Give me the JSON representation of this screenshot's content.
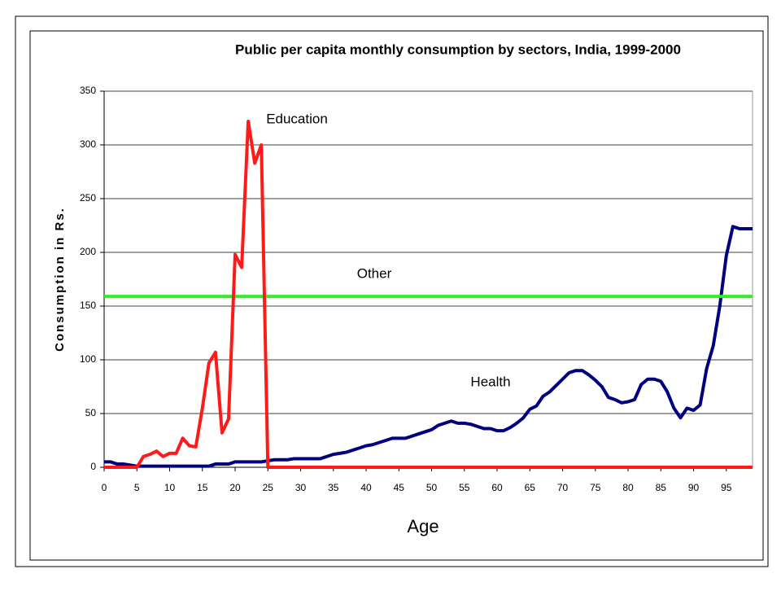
{
  "chart_data": {
    "type": "line",
    "title": "Public per capita monthly consumption by sectors, India, 1999-2000",
    "x_label": "Age",
    "y_label": "Consumption in Rs.",
    "x": [
      0,
      1,
      2,
      3,
      4,
      5,
      6,
      7,
      8,
      9,
      10,
      11,
      12,
      13,
      14,
      15,
      16,
      17,
      18,
      19,
      20,
      21,
      22,
      23,
      24,
      25,
      26,
      27,
      28,
      29,
      30,
      31,
      32,
      33,
      34,
      35,
      36,
      37,
      38,
      39,
      40,
      41,
      42,
      43,
      44,
      45,
      46,
      47,
      48,
      49,
      50,
      51,
      52,
      53,
      54,
      55,
      56,
      57,
      58,
      59,
      60,
      61,
      62,
      63,
      64,
      65,
      66,
      67,
      68,
      69,
      70,
      71,
      72,
      73,
      74,
      75,
      76,
      77,
      78,
      79,
      80,
      81,
      82,
      83,
      84,
      85,
      86,
      87,
      88,
      89,
      90,
      91,
      92,
      93,
      94,
      95,
      96,
      97,
      98,
      99
    ],
    "series": [
      {
        "name": "Health",
        "color": "#000080",
        "values": [
          5,
          5,
          3,
          3,
          2,
          1,
          1,
          1,
          1,
          1,
          1,
          1,
          1,
          1,
          1,
          1,
          1,
          3,
          3,
          3,
          5,
          5,
          5,
          5,
          5,
          6,
          7,
          7,
          7,
          8,
          8,
          8,
          8,
          8,
          10,
          12,
          13,
          14,
          16,
          18,
          20,
          21,
          23,
          25,
          27,
          27,
          27,
          29,
          31,
          33,
          35,
          39,
          41,
          43,
          41,
          41,
          40,
          38,
          36,
          36,
          34,
          34,
          37,
          41,
          46,
          54,
          57,
          66,
          70,
          76,
          82,
          88,
          90,
          90,
          86,
          81,
          75,
          65,
          63,
          60,
          61,
          63,
          77,
          82,
          82,
          80,
          70,
          55,
          46,
          55,
          53,
          58,
          92,
          113,
          150,
          197,
          224,
          222,
          222,
          222
        ]
      },
      {
        "name": "Other",
        "color": "#33ee22",
        "values": [
          159,
          159,
          159,
          159,
          159,
          159,
          159,
          159,
          159,
          159,
          159,
          159,
          159,
          159,
          159,
          159,
          159,
          159,
          159,
          159,
          159,
          159,
          159,
          159,
          159,
          159,
          159,
          159,
          159,
          159,
          159,
          159,
          159,
          159,
          159,
          159,
          159,
          159,
          159,
          159,
          159,
          159,
          159,
          159,
          159,
          159,
          159,
          159,
          159,
          159,
          159,
          159,
          159,
          159,
          159,
          159,
          159,
          159,
          159,
          159,
          159,
          159,
          159,
          159,
          159,
          159,
          159,
          159,
          159,
          159,
          159,
          159,
          159,
          159,
          159,
          159,
          159,
          159,
          159,
          159,
          159,
          159,
          159,
          159,
          159,
          159,
          159,
          159,
          159,
          159,
          159,
          159,
          159,
          159,
          159,
          159,
          159,
          159,
          159,
          159
        ]
      },
      {
        "name": "Education",
        "color": "#ff1a1a",
        "values": [
          0,
          0,
          0,
          0,
          0,
          0,
          10,
          12,
          15,
          10,
          13,
          13,
          27,
          20,
          19,
          55,
          97,
          107,
          32,
          45,
          198,
          186,
          322,
          283,
          300,
          0,
          0,
          0,
          0,
          0,
          0,
          0,
          0,
          0,
          0,
          0,
          0,
          0,
          0,
          0,
          0,
          0,
          0,
          0,
          0,
          0,
          0,
          0,
          0,
          0,
          0,
          0,
          0,
          0,
          0,
          0,
          0,
          0,
          0,
          0,
          0,
          0,
          0,
          0,
          0,
          0,
          0,
          0,
          0,
          0,
          0,
          0,
          0,
          0,
          0,
          0,
          0,
          0,
          0,
          0,
          0,
          0,
          0,
          0,
          0,
          0,
          0,
          0,
          0,
          0,
          0,
          0,
          0,
          0,
          0,
          0,
          0,
          0,
          0,
          0
        ]
      }
    ],
    "xlim": [
      0,
      99
    ],
    "ylim": [
      0,
      350
    ],
    "xticks": [
      0,
      5,
      10,
      15,
      20,
      25,
      30,
      35,
      40,
      45,
      50,
      55,
      60,
      65,
      70,
      75,
      80,
      85,
      90,
      95
    ],
    "yticks": [
      0,
      50,
      100,
      150,
      200,
      250,
      300,
      350
    ],
    "grid": true
  }
}
